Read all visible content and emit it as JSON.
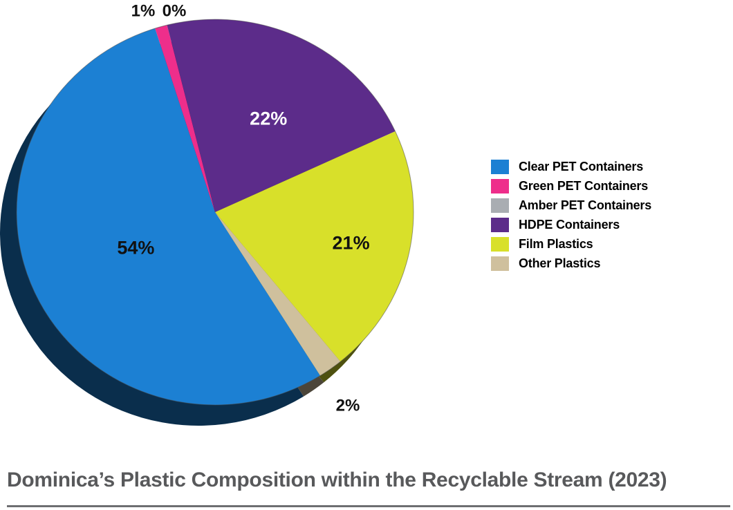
{
  "chart_data": {
    "type": "pie",
    "title": "Dominica’s Plastic Composition within the Recyclable Stream (2023)",
    "unit": "%",
    "effect": "3d",
    "direction": "clockwise",
    "start_angle_deg": 148,
    "legend_position": "right",
    "series": [
      {
        "label": "Clear PET Containers",
        "value": 54,
        "color": "#1c80d3",
        "label_color": "#111111",
        "label_placement": "inside"
      },
      {
        "label": "Green PET Containers",
        "value": 1,
        "color": "#ee2e8b",
        "label_color": "#111111",
        "label_placement": "outside"
      },
      {
        "label": "Amber PET Containers",
        "value": 0,
        "color": "#a9adb2",
        "label_color": "#111111",
        "label_placement": "outside"
      },
      {
        "label": "HDPE Containers",
        "value": 22,
        "color": "#5c2c8a",
        "label_color": "#ffffff",
        "label_placement": "inside"
      },
      {
        "label": "Film Plastics",
        "value": 21,
        "color": "#d8e02a",
        "label_color": "#111111",
        "label_placement": "inside"
      },
      {
        "label": "Other Plastics",
        "value": 2,
        "color": "#cfc09d",
        "label_color": "#111111",
        "label_placement": "outside"
      }
    ]
  },
  "decor": {
    "title_color": "#58595b",
    "underline_color": "#6d6e71",
    "rim_stroke": "#4a4a4a"
  }
}
